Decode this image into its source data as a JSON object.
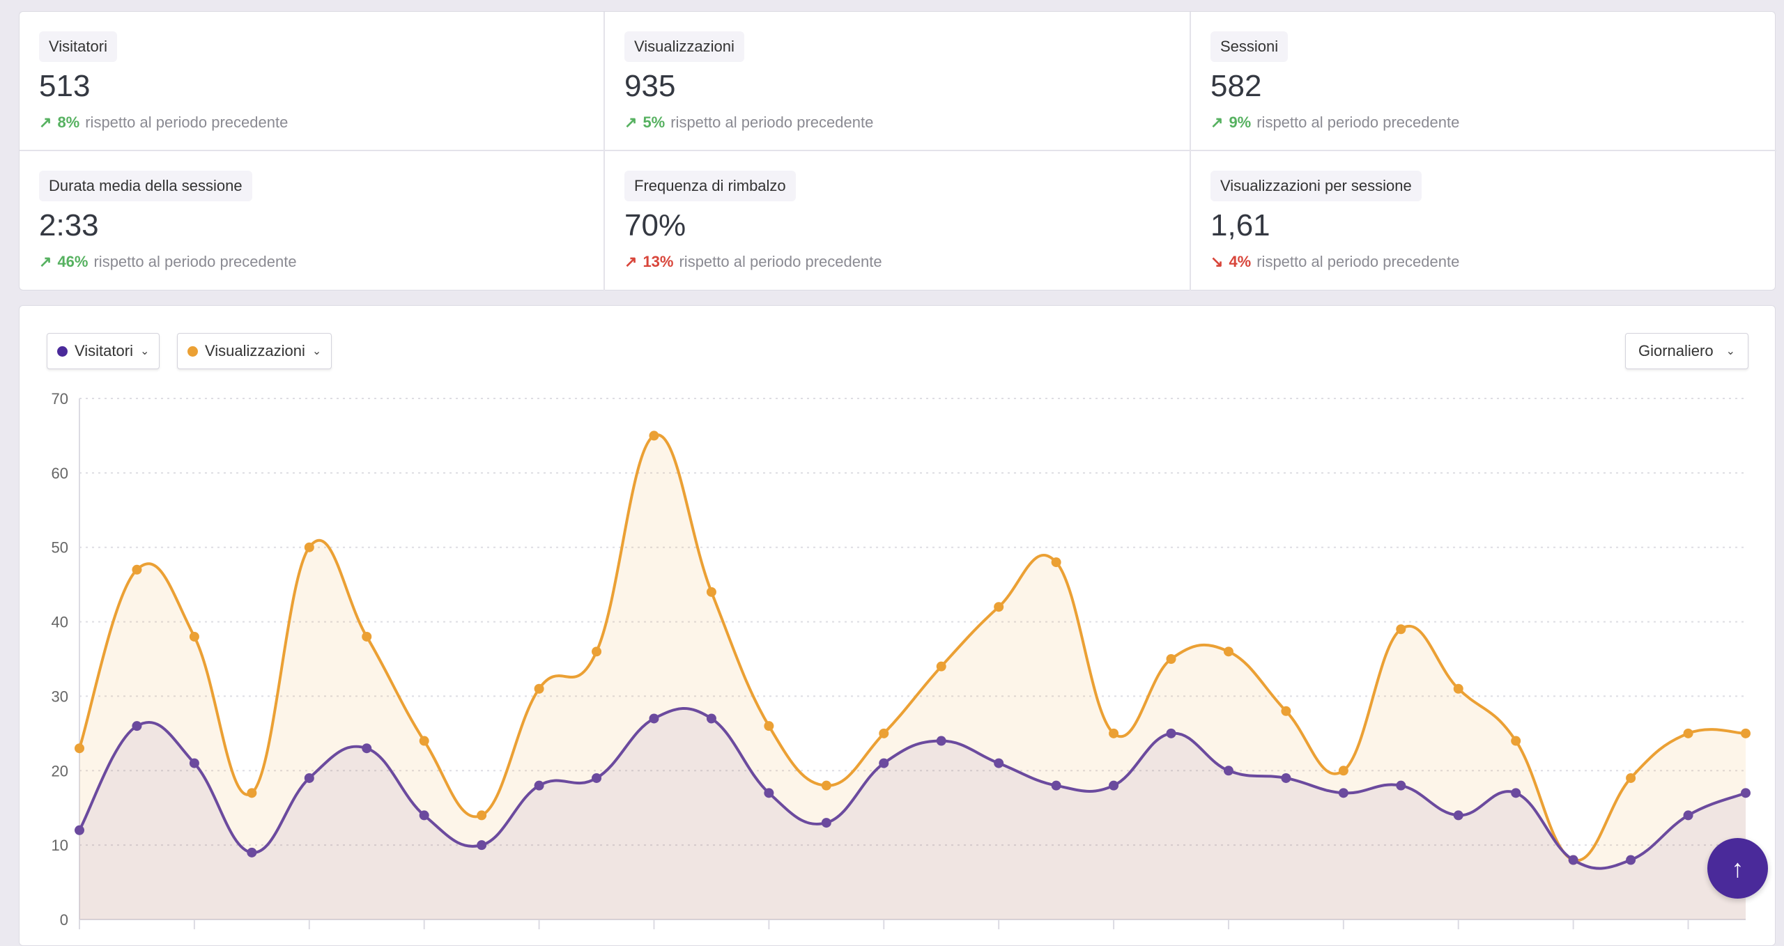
{
  "stats": [
    {
      "label": "Visitatori",
      "value": "513",
      "change": "8%",
      "direction": "up",
      "suffix": "rispetto al periodo precedente"
    },
    {
      "label": "Visualizzazioni",
      "value": "935",
      "change": "5%",
      "direction": "up",
      "suffix": "rispetto al periodo precedente"
    },
    {
      "label": "Sessioni",
      "value": "582",
      "change": "9%",
      "direction": "up",
      "suffix": "rispetto al periodo precedente"
    },
    {
      "label": "Durata media della sessione",
      "value": "2:33",
      "change": "46%",
      "direction": "up",
      "suffix": "rispetto al periodo precedente"
    },
    {
      "label": "Frequenza di rimbalzo",
      "value": "70%",
      "change": "13%",
      "direction": "up-bad",
      "suffix": "rispetto al periodo precedente"
    },
    {
      "label": "Visualizzazioni per sessione",
      "value": "1,61",
      "change": "4%",
      "direction": "down",
      "suffix": "rispetto al periodo precedente"
    }
  ],
  "controls": {
    "series1": "Visitatori",
    "series2": "Visualizzazioni",
    "interval": "Giornaliero"
  },
  "colors": {
    "visitors": "#6b4a9e",
    "views": "#eba034",
    "green": "#56b160",
    "red": "#d8453a"
  },
  "chart_data": {
    "type": "area",
    "ylim": [
      0,
      70
    ],
    "yticks": [
      "0",
      "10",
      "20",
      "30",
      "40",
      "50",
      "60",
      "70"
    ],
    "grid": true,
    "series": [
      {
        "name": "Visualizzazioni",
        "values": [
          23,
          47,
          38,
          17,
          50,
          38,
          24,
          14,
          31,
          36,
          65,
          44,
          26,
          18,
          25,
          34,
          42,
          48,
          25,
          35,
          36,
          28,
          20,
          39,
          31,
          24,
          8,
          19,
          25,
          25
        ]
      },
      {
        "name": "Visitatori",
        "values": [
          12,
          26,
          21,
          9,
          19,
          23,
          14,
          10,
          18,
          19,
          27,
          27,
          17,
          13,
          21,
          24,
          21,
          18,
          18,
          25,
          20,
          19,
          17,
          18,
          14,
          17,
          8,
          8,
          14,
          17
        ]
      }
    ]
  }
}
